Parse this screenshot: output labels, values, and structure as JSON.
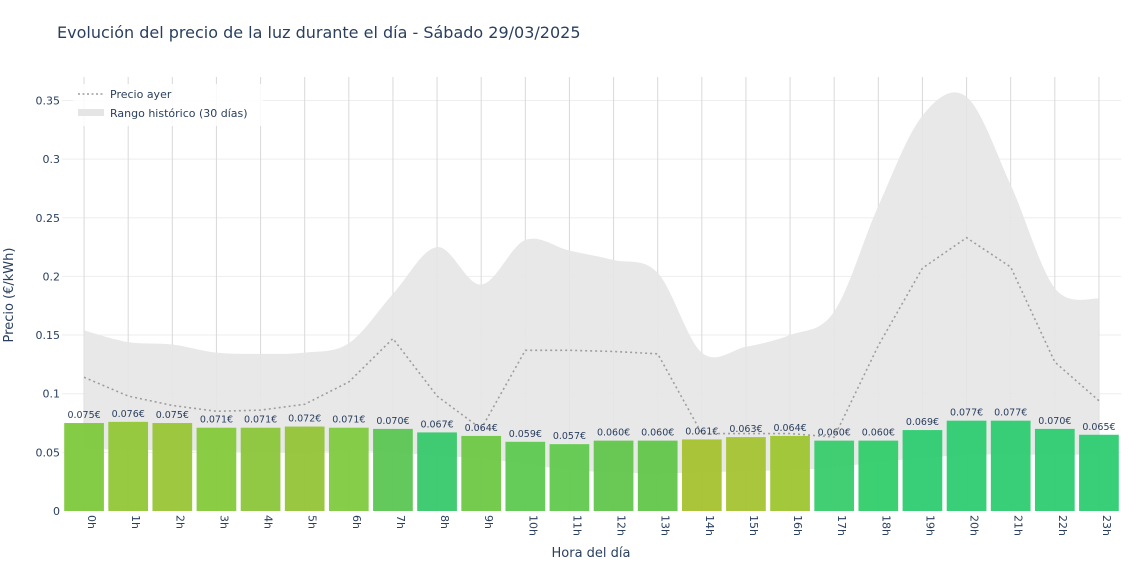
{
  "chart_data": {
    "type": "bar",
    "title": "Evolución del precio de la luz durante el día - Sábado 29/03/2025",
    "xlabel": "Hora del día",
    "ylabel": "Precio (€/kWh)",
    "ylim": [
      0,
      0.37
    ],
    "yticks": [
      0,
      0.05,
      0.1,
      0.15,
      0.2,
      0.25,
      0.3,
      0.35
    ],
    "ytick_labels": [
      "0",
      "0.05",
      "0.1",
      "0.15",
      "0.2",
      "0.25",
      "0.3",
      "0.35"
    ],
    "categories": [
      "0h",
      "1h",
      "2h",
      "3h",
      "4h",
      "5h",
      "6h",
      "7h",
      "8h",
      "9h",
      "10h",
      "11h",
      "12h",
      "13h",
      "14h",
      "15h",
      "16h",
      "17h",
      "18h",
      "19h",
      "20h",
      "21h",
      "22h",
      "23h"
    ],
    "values": [
      0.075,
      0.076,
      0.075,
      0.071,
      0.071,
      0.072,
      0.071,
      0.07,
      0.067,
      0.064,
      0.059,
      0.057,
      0.06,
      0.06,
      0.061,
      0.063,
      0.064,
      0.06,
      0.06,
      0.069,
      0.077,
      0.077,
      0.07,
      0.065
    ],
    "value_labels": [
      "0.075€",
      "0.076€",
      "0.075€",
      "0.071€",
      "0.071€",
      "0.072€",
      "0.071€",
      "0.070€",
      "0.067€",
      "0.064€",
      "0.059€",
      "0.057€",
      "0.060€",
      "0.060€",
      "0.061€",
      "0.063€",
      "0.064€",
      "0.060€",
      "0.060€",
      "0.069€",
      "0.077€",
      "0.077€",
      "0.070€",
      "0.065€"
    ],
    "bar_colors": [
      "#7dc93c",
      "#91c637",
      "#9ac537",
      "#85c93b",
      "#8cc63a",
      "#93c437",
      "#7fca40",
      "#5cc653",
      "#37c86a",
      "#6ec845",
      "#5dc951",
      "#61c94e",
      "#62c64b",
      "#62c64a",
      "#a7c22f",
      "#a4c331",
      "#9ec532",
      "#38cb6a",
      "#32cd6c",
      "#2ecc71",
      "#2ecc71",
      "#2ecc71",
      "#2ecc71",
      "#2ecc71"
    ],
    "series": [
      {
        "name": "Precio ayer",
        "type": "line",
        "style": "dotted",
        "color": "#9e9e9e",
        "values": [
          0.114,
          0.098,
          0.09,
          0.085,
          0.086,
          0.091,
          0.11,
          0.147,
          0.098,
          0.07,
          0.137,
          0.137,
          0.136,
          0.134,
          0.066,
          0.066,
          0.066,
          0.063,
          0.141,
          0.207,
          0.233,
          0.208,
          0.127,
          0.094
        ]
      },
      {
        "name": "Rango histórico (30 días)",
        "type": "band",
        "color": "#e5e5e5",
        "upper": [
          0.154,
          0.144,
          0.142,
          0.135,
          0.134,
          0.135,
          0.143,
          0.185,
          0.225,
          0.193,
          0.231,
          0.222,
          0.214,
          0.203,
          0.135,
          0.14,
          0.15,
          0.17,
          0.26,
          0.337,
          0.353,
          0.278,
          0.19,
          0.181
        ],
        "lower": [
          0.053,
          0.052,
          0.052,
          0.051,
          0.05,
          0.05,
          0.051,
          0.05,
          0.047,
          0.045,
          0.04,
          0.035,
          0.033,
          0.032,
          0.033,
          0.034,
          0.035,
          0.037,
          0.042,
          0.045,
          0.048,
          0.048,
          0.048,
          0.048
        ]
      }
    ],
    "legend": {
      "position": "top-left",
      "entries": [
        "Precio ayer",
        "Rango histórico (30 días)"
      ]
    },
    "grid": true
  }
}
